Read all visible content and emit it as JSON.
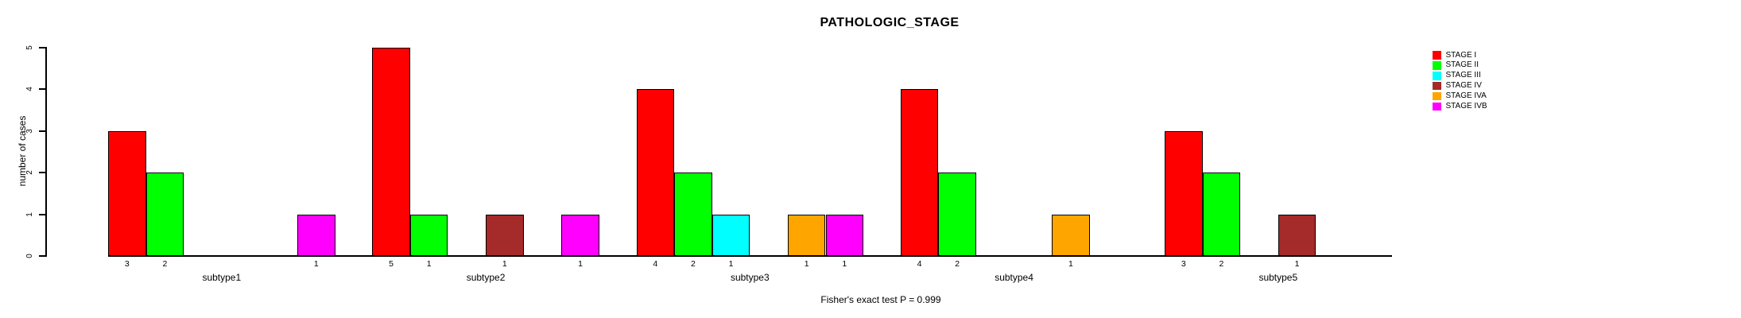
{
  "chart_data": {
    "type": "bar",
    "title": "PATHOLOGIC_STAGE",
    "ylabel": "number of cases",
    "ylim": [
      0,
      5
    ],
    "yticks": [
      0,
      1,
      2,
      3,
      4,
      5
    ],
    "grid": false,
    "legend_position": "right",
    "bar_value_labels": true,
    "annotation": "Fisher's exact test P = 0.999",
    "categories": [
      "subtype1",
      "subtype2",
      "subtype3",
      "subtype4",
      "subtype5"
    ],
    "series": [
      {
        "name": "STAGE I",
        "color": "#FF0000",
        "values": [
          3,
          5,
          4,
          4,
          3
        ]
      },
      {
        "name": "STAGE II",
        "color": "#00FF00",
        "values": [
          2,
          1,
          2,
          2,
          2
        ]
      },
      {
        "name": "STAGE III",
        "color": "#00FFFF",
        "values": [
          0,
          0,
          1,
          0,
          0
        ]
      },
      {
        "name": "STAGE IV",
        "color": "#A52A2A",
        "values": [
          0,
          1,
          0,
          0,
          1
        ]
      },
      {
        "name": "STAGE IVA",
        "color": "#FFA500",
        "values": [
          0,
          0,
          1,
          1,
          0
        ]
      },
      {
        "name": "STAGE IVB",
        "color": "#FF00FF",
        "values": [
          1,
          1,
          1,
          0,
          0
        ]
      }
    ]
  }
}
